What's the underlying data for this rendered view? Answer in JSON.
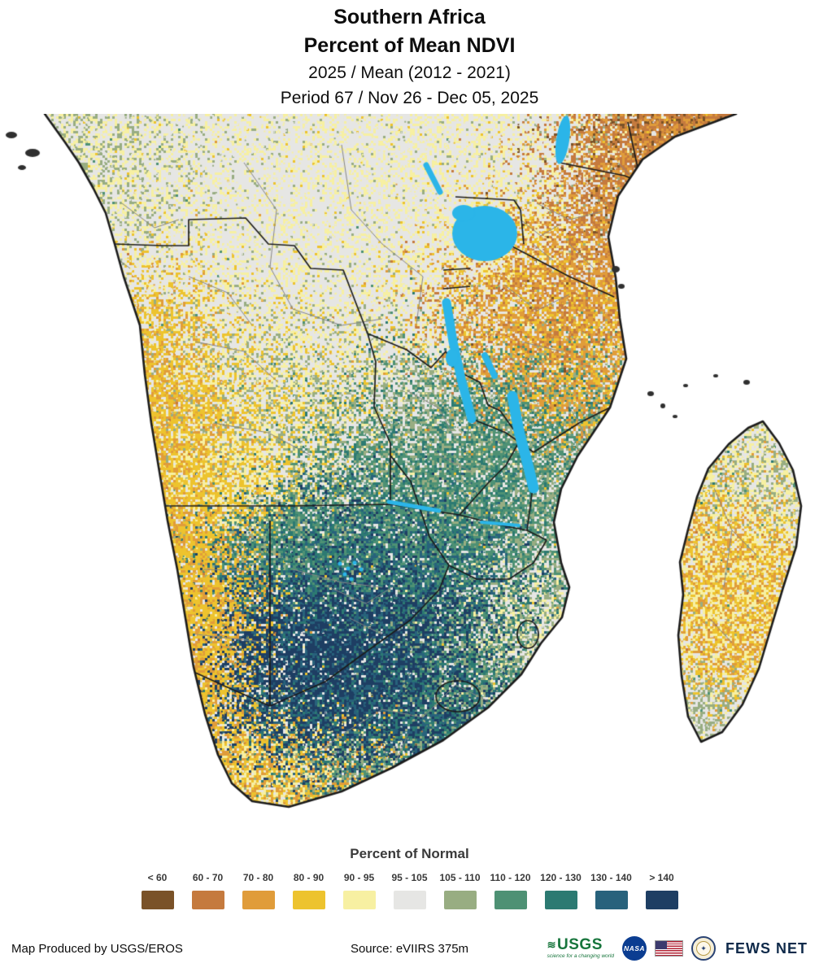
{
  "title": {
    "region": "Southern Africa",
    "product": "Percent of Mean NDVI",
    "comparison": "2025 / Mean (2012 - 2021)",
    "period": "Period 67 / Nov 26 - Dec 05, 2025"
  },
  "legend": {
    "title": "Percent of Normal",
    "classes": [
      {
        "label": "< 60",
        "color": "#7a5228"
      },
      {
        "label": "60 - 70",
        "color": "#c57a3e"
      },
      {
        "label": "70 - 80",
        "color": "#e09c3a"
      },
      {
        "label": "80 - 90",
        "color": "#edc32e"
      },
      {
        "label": "90 - 95",
        "color": "#f7f0a2"
      },
      {
        "label": "95 - 105",
        "color": "#e6e6e4"
      },
      {
        "label": "105 - 110",
        "color": "#98ad82"
      },
      {
        "label": "110 - 120",
        "color": "#4e9174"
      },
      {
        "label": "120 - 130",
        "color": "#2c7a72"
      },
      {
        "label": "130 - 140",
        "color": "#28627c"
      },
      {
        "label": "> 140",
        "color": "#1e3e63"
      }
    ]
  },
  "map": {
    "ocean_color": "#ffffff",
    "water_color": "#2bb5e8",
    "coast_color": "#1c1c1c",
    "country_border_color": "#1c1c1c",
    "admin_border_color": "#858585"
  },
  "footer": {
    "produced_by": "Map Produced by USGS/EROS",
    "source": "Source: eVIIRS 375m",
    "usgs_label": "USGS",
    "usgs_tagline": "science for a changing world",
    "nasa_label": "NASA",
    "fews_net_label": "FEWS NET"
  }
}
